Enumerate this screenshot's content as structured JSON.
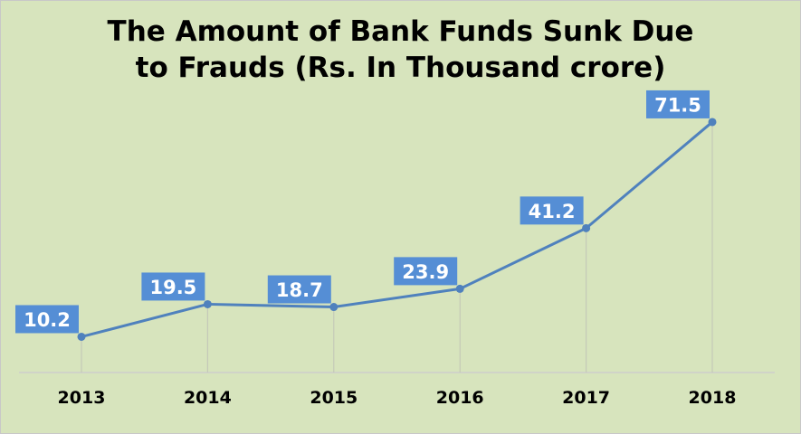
{
  "chart_data": {
    "type": "line",
    "title_lines": [
      "The Amount of Bank Funds Sunk Due",
      "to Frauds (Rs. In Thousand crore)"
    ],
    "categories": [
      "2013",
      "2014",
      "2015",
      "2016",
      "2017",
      "2018"
    ],
    "series": [
      {
        "values": [
          10.2,
          19.5,
          18.7,
          23.9,
          41.2,
          71.5
        ]
      }
    ],
    "data_labels": [
      "10.2",
      "19.5",
      "18.7",
      "23.9",
      "41.2",
      "71.5"
    ],
    "xlabel": "",
    "ylabel": "",
    "ylim": [
      0,
      80
    ],
    "grid": false,
    "drop_lines": true,
    "colors": {
      "background": "#d7e4bd",
      "line": "#4f81bd",
      "label_box": "#558ed5",
      "label_text": "#ffffff",
      "drop_line": "#c4c9b8",
      "axis": "#d0d3c8"
    }
  }
}
